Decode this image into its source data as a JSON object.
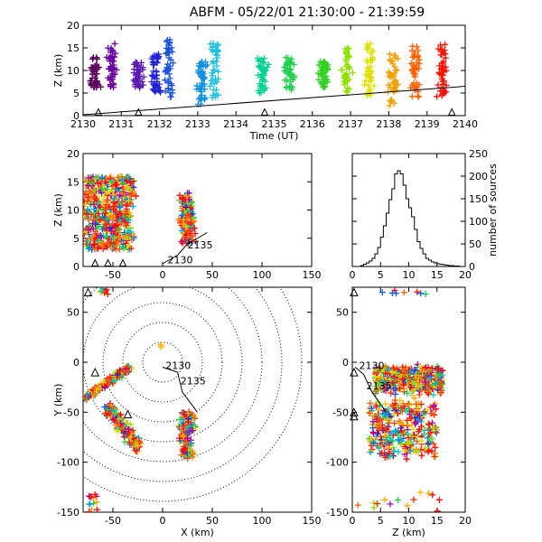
{
  "title": "ABFM - 05/22/01 21:30:00 - 21:39:59",
  "chart_data": [
    {
      "id": "time_height",
      "type": "scatter",
      "xlabel": "Time (UT)",
      "ylabel": "Z (km)",
      "xlim": [
        2130,
        2140
      ],
      "ylim": [
        0,
        20
      ],
      "xticks": [
        "2130",
        "2131",
        "2132",
        "2133",
        "2134",
        "2135",
        "2136",
        "2137",
        "2138",
        "2139",
        "2140"
      ],
      "yticks": [
        "0",
        "5",
        "10",
        "15",
        "20"
      ],
      "clusters": [
        {
          "t": 2130.3,
          "zmin": 6,
          "zmax": 13,
          "color": "#5a005a"
        },
        {
          "t": 2130.75,
          "zmin": 6,
          "zmax": 16,
          "color": "#6a00a0"
        },
        {
          "t": 2131.45,
          "zmin": 5,
          "zmax": 12,
          "color": "#5a1ab0"
        },
        {
          "t": 2131.9,
          "zmin": 4,
          "zmax": 14,
          "color": "#2020d8"
        },
        {
          "t": 2132.25,
          "zmin": 4,
          "zmax": 17,
          "color": "#1a50e0"
        },
        {
          "t": 2133.1,
          "zmin": 2,
          "zmax": 12,
          "color": "#1090e0"
        },
        {
          "t": 2133.45,
          "zmin": 4,
          "zmax": 16,
          "color": "#20c0e0"
        },
        {
          "t": 2134.7,
          "zmin": 5,
          "zmax": 13,
          "color": "#00d090"
        },
        {
          "t": 2135.4,
          "zmin": 5,
          "zmax": 13,
          "color": "#20d050"
        },
        {
          "t": 2136.3,
          "zmin": 6,
          "zmax": 12,
          "color": "#30d020"
        },
        {
          "t": 2136.9,
          "zmin": 5,
          "zmax": 15,
          "color": "#90e000"
        },
        {
          "t": 2137.5,
          "zmin": 4,
          "zmax": 16,
          "color": "#e0e000"
        },
        {
          "t": 2138.1,
          "zmin": 2,
          "zmax": 14,
          "color": "#f0a000"
        },
        {
          "t": 2138.7,
          "zmin": 3,
          "zmax": 16,
          "color": "#ff6000"
        },
        {
          "t": 2139.4,
          "zmin": 4,
          "zmax": 16,
          "color": "#ff1000"
        }
      ],
      "trend_line": {
        "x": [
          2130,
          2140
        ],
        "y": [
          0.2,
          6.5
        ]
      },
      "triangles_x": [
        2130.4,
        2131.45,
        2134.75,
        2139.65
      ]
    },
    {
      "id": "x_height",
      "type": "scatter",
      "xlabel": "",
      "ylabel": "Z (km)",
      "xlim": [
        -80,
        150
      ],
      "ylim": [
        0,
        20
      ],
      "xticks": [
        "-50",
        "0",
        "50",
        "100",
        "150"
      ],
      "yticks": [
        "0",
        "5",
        "10",
        "15",
        "20"
      ],
      "annotations": [
        "2130",
        "2135"
      ]
    },
    {
      "id": "height_histogram",
      "type": "bar",
      "xlabel": "",
      "ylabel": "number of sources",
      "xlim": [
        0,
        20
      ],
      "ylim": [
        0,
        250
      ],
      "xticks": [
        "0",
        "5",
        "10",
        "15",
        "20"
      ],
      "yticks": [
        "0",
        "50",
        "100",
        "150",
        "200",
        "250"
      ],
      "bin_width": 0.5,
      "bins_start": 0,
      "counts": [
        0,
        0,
        0,
        2,
        5,
        8,
        12,
        18,
        28,
        42,
        65,
        90,
        118,
        148,
        172,
        205,
        212,
        205,
        180,
        150,
        130,
        110,
        82,
        55,
        40,
        28,
        18,
        14,
        10,
        8,
        6,
        5,
        4,
        3,
        2,
        2,
        1,
        1,
        0,
        0
      ]
    },
    {
      "id": "plan_view",
      "type": "scatter",
      "xlabel": "X (km)",
      "ylabel": "Y (km)",
      "xlim": [
        -80,
        150
      ],
      "ylim": [
        -150,
        75
      ],
      "xticks": [
        "-50",
        "0",
        "50",
        "100",
        "150"
      ],
      "yticks": [
        "-150",
        "-100",
        "-50",
        "0",
        "50"
      ],
      "range_rings_km": [
        20,
        40,
        60,
        80,
        100,
        120,
        140
      ],
      "annotations": [
        "2130",
        "2135"
      ]
    },
    {
      "id": "z_y_view",
      "type": "scatter",
      "xlabel": "Z (km)",
      "ylabel": "",
      "xlim": [
        0,
        20
      ],
      "ylim": [
        -150,
        75
      ],
      "xticks": [
        "0",
        "5",
        "10",
        "15",
        "20"
      ],
      "yticks": [
        "-150",
        "-100",
        "-50",
        "0",
        "50"
      ],
      "annotations": [
        "2130",
        "2135"
      ]
    }
  ]
}
